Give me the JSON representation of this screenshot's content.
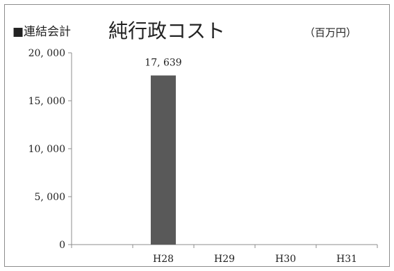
{
  "chart_data": {
    "type": "bar",
    "title_prefix": "■連結会計",
    "title": "純行政コスト",
    "unit": "（百万円）",
    "categories": [
      "",
      "H28",
      "H29",
      "H30",
      "H31"
    ],
    "values": [
      null,
      17639,
      null,
      null,
      null
    ],
    "data_labels": [
      "",
      "17, 639",
      "",
      "",
      ""
    ],
    "y_ticks": [
      0,
      5000,
      10000,
      15000,
      20000
    ],
    "y_tick_labels": [
      "0",
      "5, 000",
      "10, 000",
      "15, 000",
      "20, 000"
    ],
    "ylim": [
      0,
      20000
    ],
    "grid": false,
    "legend": "none",
    "bar_color": "#595959"
  }
}
